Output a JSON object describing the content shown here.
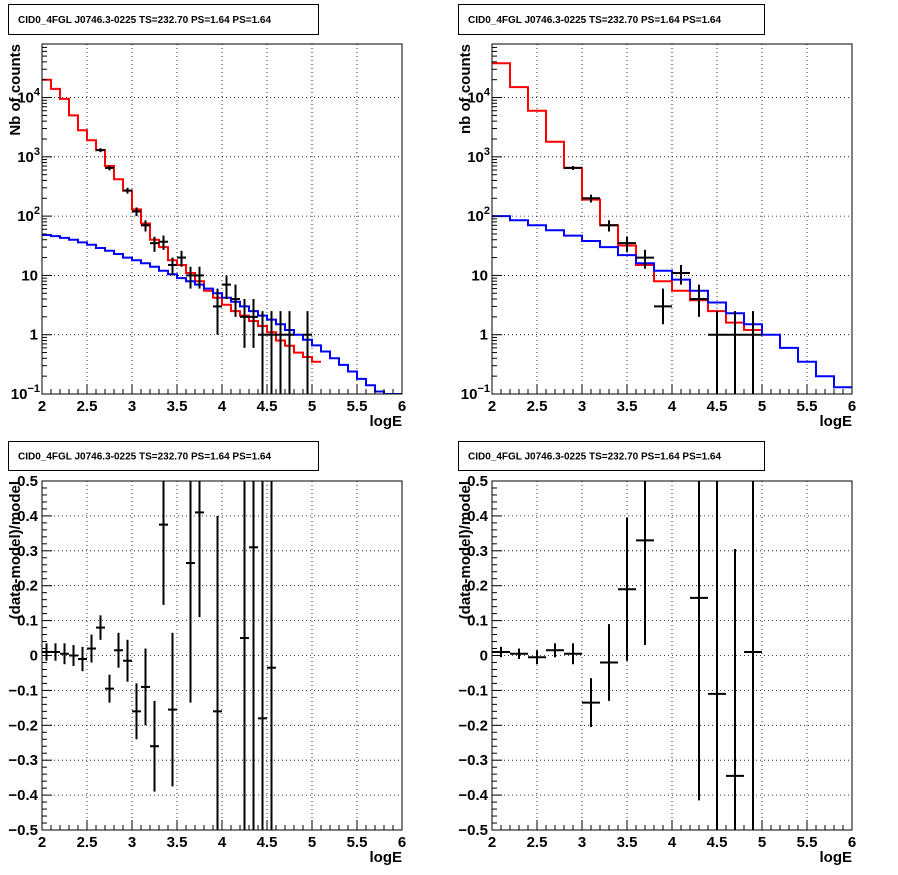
{
  "colors": {
    "data": "#000000",
    "total_model": "#ff0000",
    "background_model": "#0000ff",
    "grid": "#000000"
  },
  "chart_data": [
    {
      "type": "line",
      "title": "CID0_4FGL J0746.3-0225 TS=232.70 PS=1.64 PS=1.64",
      "xlabel": "logE",
      "ylabel": "Nb of counts",
      "xlim": [
        2,
        6
      ],
      "ylim": [
        0.1,
        80000
      ],
      "yscale": "log",
      "grid": true,
      "x_ticks": [
        "2",
        "2.5",
        "3",
        "3.5",
        "4",
        "4.5",
        "5",
        "5.5",
        "6"
      ],
      "y_ticks": [
        {
          "v": 0.1,
          "l": "10",
          "e": "−1"
        },
        {
          "v": 1,
          "l": "1"
        },
        {
          "v": 10,
          "l": "10"
        },
        {
          "v": 100,
          "l": "10",
          "e": "2"
        },
        {
          "v": 1000,
          "l": "10",
          "e": "3"
        },
        {
          "v": 10000,
          "l": "10",
          "e": "4"
        }
      ],
      "bin_width": 0.1,
      "series": [
        {
          "role": "total_model",
          "bin_low": [
            2.0,
            2.1,
            2.2,
            2.3,
            2.4,
            2.5,
            2.6,
            2.7,
            2.8,
            2.9,
            3.0,
            3.1,
            3.2,
            3.3,
            3.4,
            3.5,
            3.6,
            3.7,
            3.8,
            3.9,
            4.0,
            4.1,
            4.2,
            4.3,
            4.4,
            4.5,
            4.6,
            4.7,
            4.8,
            4.9,
            5.0
          ],
          "values": [
            20000,
            14000,
            9500,
            5000,
            2800,
            1900,
            1300,
            700,
            420,
            270,
            130,
            75,
            40,
            30,
            18,
            15,
            11,
            8,
            5.5,
            4.2,
            3.2,
            2.5,
            2.1,
            1.7,
            1.4,
            1.1,
            0.8,
            0.65,
            0.5,
            0.42,
            0.35
          ]
        },
        {
          "role": "background_model",
          "bin_low": [
            2.0,
            2.1,
            2.2,
            2.3,
            2.4,
            2.5,
            2.6,
            2.7,
            2.8,
            2.9,
            3.0,
            3.1,
            3.2,
            3.3,
            3.4,
            3.5,
            3.6,
            3.7,
            3.8,
            3.9,
            4.0,
            4.1,
            4.2,
            4.3,
            4.4,
            4.5,
            4.6,
            4.7,
            4.8,
            4.9,
            5.0,
            5.1,
            5.2,
            5.3,
            5.4,
            5.5,
            5.6,
            5.7,
            5.8,
            5.9
          ],
          "values": [
            48,
            46,
            43,
            40,
            36,
            33,
            29,
            26,
            23,
            20,
            18,
            16,
            14,
            12,
            10.5,
            9,
            8,
            7,
            6,
            5,
            4.2,
            3.6,
            3.0,
            2.5,
            2.1,
            1.8,
            1.5,
            1.2,
            1.0,
            0.82,
            0.66,
            0.52,
            0.4,
            0.31,
            0.24,
            0.18,
            0.14,
            0.11,
            0.1,
            0.1
          ]
        },
        {
          "role": "data",
          "x": [
            2.65,
            2.75,
            2.95,
            3.05,
            3.15,
            3.25,
            3.35,
            3.45,
            3.55,
            3.65,
            3.75,
            3.95,
            4.05,
            4.15,
            4.25,
            4.35,
            4.45,
            4.55,
            4.65,
            4.75,
            4.95
          ],
          "y": [
            1300,
            650,
            270,
            120,
            70,
            35,
            37,
            15,
            20,
            10,
            10,
            3,
            7,
            4,
            2,
            2,
            1,
            1,
            1,
            1,
            1
          ],
          "y_low": [
            1200,
            590,
            240,
            100,
            55,
            25,
            27,
            10,
            14,
            6,
            6,
            1,
            4,
            2,
            0.6,
            0.6,
            0.1,
            0.1,
            0.1,
            0.1,
            0.1
          ],
          "y_high": [
            1400,
            710,
            300,
            140,
            85,
            45,
            47,
            20,
            26,
            14,
            14,
            6,
            10,
            7,
            4,
            4,
            2.5,
            2.5,
            2.5,
            2.5,
            2.5
          ]
        }
      ]
    },
    {
      "type": "line",
      "title": "CID0_4FGL J0746.3-0225 TS=232.70 PS=1.64 PS=1.64",
      "xlabel": "logE",
      "ylabel": "nb of counts",
      "xlim": [
        2,
        6
      ],
      "ylim": [
        0.1,
        80000
      ],
      "yscale": "log",
      "grid": true,
      "x_ticks": [
        "2",
        "2.5",
        "3",
        "3.5",
        "4",
        "4.5",
        "5",
        "5.5",
        "6"
      ],
      "y_ticks": [
        {
          "v": 0.1,
          "l": "10",
          "e": "−1"
        },
        {
          "v": 1,
          "l": "1"
        },
        {
          "v": 10,
          "l": "10"
        },
        {
          "v": 100,
          "l": "10",
          "e": "2"
        },
        {
          "v": 1000,
          "l": "10",
          "e": "3"
        },
        {
          "v": 10000,
          "l": "10",
          "e": "4"
        }
      ],
      "bin_width": 0.2,
      "series": [
        {
          "role": "total_model",
          "bin_low": [
            2.0,
            2.2,
            2.4,
            2.6,
            2.8,
            3.0,
            3.2,
            3.4,
            3.6,
            3.8,
            4.0,
            4.2,
            4.4,
            4.6,
            4.8
          ],
          "values": [
            38000,
            15000,
            6000,
            1800,
            650,
            190,
            70,
            32,
            15,
            8,
            5.5,
            3.8,
            2.5,
            1.6,
            1.2
          ]
        },
        {
          "role": "background_model",
          "bin_low": [
            2.0,
            2.2,
            2.4,
            2.6,
            2.8,
            3.0,
            3.2,
            3.4,
            3.6,
            3.8,
            4.0,
            4.2,
            4.4,
            4.6,
            4.8,
            5.0,
            5.2,
            5.4,
            5.6,
            5.8
          ],
          "values": [
            100,
            85,
            70,
            58,
            47,
            38,
            30,
            22,
            16,
            12,
            8.5,
            5.5,
            3.5,
            2.3,
            1.5,
            1.0,
            0.6,
            0.35,
            0.2,
            0.13
          ]
        },
        {
          "role": "data",
          "x": [
            2.9,
            3.1,
            3.3,
            3.5,
            3.7,
            3.9,
            4.1,
            4.3,
            4.5,
            4.7,
            4.9
          ],
          "y": [
            650,
            200,
            70,
            35,
            20,
            3,
            11,
            4,
            1,
            1,
            1
          ],
          "y_low": [
            600,
            170,
            55,
            25,
            13,
            1.5,
            7,
            2,
            0.1,
            0.1,
            0.1
          ],
          "y_high": [
            700,
            230,
            85,
            45,
            27,
            6,
            15,
            7,
            2.5,
            2.5,
            2.5
          ]
        }
      ]
    },
    {
      "type": "scatter",
      "title": "CID0_4FGL J0746.3-0225 TS=232.70 PS=1.64 PS=1.64",
      "xlabel": "logE",
      "ylabel": "(data-model)/model",
      "xlim": [
        2,
        6
      ],
      "ylim": [
        -0.5,
        0.5
      ],
      "grid": true,
      "x_ticks": [
        "2",
        "2.5",
        "3",
        "3.5",
        "4",
        "4.5",
        "5",
        "5.5",
        "6"
      ],
      "y_ticks": [
        "−0.5",
        "−0.4",
        "−0.3",
        "−0.2",
        "−0.1",
        "0",
        "0.1",
        "0.2",
        "0.3",
        "0.4",
        "0.5"
      ],
      "bin_width": 0.1,
      "series": [
        {
          "role": "data",
          "x": [
            2.05,
            2.15,
            2.25,
            2.35,
            2.45,
            2.55,
            2.65,
            2.75,
            2.85,
            2.95,
            3.05,
            3.15,
            3.25,
            3.35,
            3.45,
            3.65,
            3.75,
            3.95,
            4.25,
            4.35,
            4.45,
            4.55
          ],
          "y": [
            0.01,
            0.01,
            0.005,
            0.0,
            -0.01,
            0.02,
            0.08,
            -0.095,
            0.015,
            -0.015,
            -0.16,
            -0.09,
            -0.26,
            0.375,
            -0.155,
            0.265,
            0.41,
            -0.16,
            0.05,
            0.31,
            -0.18,
            -0.035
          ],
          "err": [
            0.025,
            0.025,
            0.03,
            0.03,
            0.035,
            0.04,
            0.035,
            0.04,
            0.05,
            0.06,
            0.08,
            0.11,
            0.13,
            0.23,
            0.22,
            0.4,
            0.3,
            0.56,
            0.75,
            0.82,
            0.7,
            0.9
          ]
        }
      ]
    },
    {
      "type": "scatter",
      "title": "CID0_4FGL J0746.3-0225 TS=232.70 PS=1.64 PS=1.64",
      "xlabel": "logE",
      "ylabel": "(data-model)/model",
      "xlim": [
        2,
        6
      ],
      "ylim": [
        -0.5,
        0.5
      ],
      "grid": true,
      "x_ticks": [
        "2",
        "2.5",
        "3",
        "3.5",
        "4",
        "4.5",
        "5",
        "5.5",
        "6"
      ],
      "y_ticks": [
        "−0.5",
        "−0.4",
        "−0.3",
        "−0.2",
        "−0.1",
        "0",
        "0.1",
        "0.2",
        "0.3",
        "0.4",
        "0.5"
      ],
      "bin_width": 0.2,
      "series": [
        {
          "role": "data",
          "x": [
            2.1,
            2.3,
            2.5,
            2.7,
            2.9,
            3.1,
            3.3,
            3.5,
            3.7,
            4.3,
            4.5,
            4.7,
            4.9
          ],
          "y": [
            0.01,
            0.005,
            -0.005,
            0.015,
            0.005,
            -0.135,
            -0.02,
            0.19,
            0.33,
            0.165,
            -0.11,
            -0.345,
            0.01
          ],
          "err": [
            0.015,
            0.015,
            0.02,
            0.02,
            0.03,
            0.07,
            0.11,
            0.205,
            0.3,
            0.58,
            0.65,
            0.65,
            0.9
          ]
        }
      ]
    }
  ]
}
